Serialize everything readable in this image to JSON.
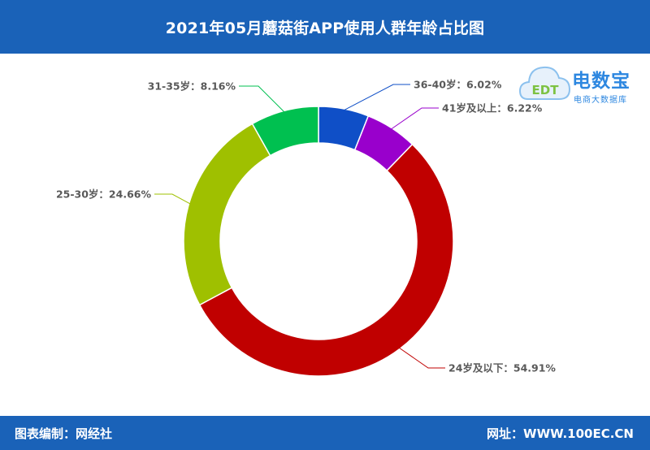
{
  "header": {
    "title": "2021年05月蘑菇街APP使用人群年龄占比图"
  },
  "logo": {
    "brand": "电数宝",
    "subtitle": "电商大数据库",
    "mark": "EDT"
  },
  "footer": {
    "left": "图表编制：网经社",
    "right": "网址：WWW.100EC.CN"
  },
  "chart_data": {
    "type": "pie",
    "title": "2021年05月蘑菇街APP使用人群年龄占比图",
    "slices": [
      {
        "label": "36-40岁",
        "value": 6.02,
        "display": "36-40岁：6.02%",
        "color": "#0f4fc7"
      },
      {
        "label": "41岁及以上",
        "value": 6.22,
        "display": "41岁及以上：6.22%",
        "color": "#9900cc"
      },
      {
        "label": "24岁及以下",
        "value": 54.91,
        "display": "24岁及以下：54.91%",
        "color": "#c00000"
      },
      {
        "label": "25-30岁",
        "value": 24.66,
        "display": "25-30岁：24.66%",
        "color": "#9fc000"
      },
      {
        "label": "31-35岁",
        "value": 8.16,
        "display": "31-35岁：8.16%",
        "color": "#00c050"
      }
    ],
    "donut": true
  }
}
